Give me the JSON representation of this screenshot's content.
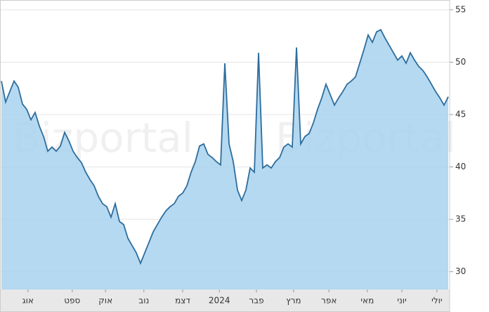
{
  "chart_data": {
    "type": "area",
    "watermark": "Bizportal",
    "values": [
      48.2,
      46.2,
      47.2,
      48.2,
      47.6,
      46.0,
      45.5,
      44.5,
      45.2,
      43.9,
      42.9,
      41.5,
      41.9,
      41.5,
      42.0,
      43.3,
      42.5,
      41.5,
      40.9,
      40.4,
      39.5,
      38.8,
      38.2,
      37.2,
      36.5,
      36.2,
      35.2,
      36.5,
      34.8,
      34.5,
      33.2,
      32.5,
      31.8,
      30.8,
      31.8,
      32.8,
      33.8,
      34.5,
      35.2,
      35.8,
      36.2,
      36.5,
      37.2,
      37.5,
      38.2,
      39.5,
      40.5,
      42.0,
      42.2,
      41.2,
      40.9,
      40.5,
      40.2,
      49.9,
      42.2,
      40.5,
      37.8,
      36.8,
      37.8,
      39.9,
      39.5,
      50.9,
      39.9,
      40.2,
      39.9,
      40.5,
      40.9,
      41.9,
      42.2,
      41.9,
      51.4,
      42.2,
      42.9,
      43.2,
      44.2,
      45.5,
      46.6,
      47.9,
      46.9,
      45.9,
      46.6,
      47.2,
      47.9,
      48.2,
      48.6,
      49.9,
      51.2,
      52.6,
      51.9,
      52.9,
      53.1,
      52.3,
      51.6,
      50.9,
      50.2,
      50.6,
      49.9,
      50.9,
      50.2,
      49.6,
      49.2,
      48.6,
      47.9,
      47.2,
      46.6,
      45.9,
      46.7
    ],
    "color": "#2d6d9c",
    "fill": "#a8d2ee",
    "xlim": [
      0,
      106
    ],
    "xticks": [
      {
        "value": 6.3,
        "label": "אוג"
      },
      {
        "value": 16.8,
        "label": "ספט"
      },
      {
        "value": 24.7,
        "label": "אוק"
      },
      {
        "value": 33.8,
        "label": "נוב"
      },
      {
        "value": 43,
        "label": "דצמ"
      },
      {
        "value": 51.7,
        "label": "2024"
      },
      {
        "value": 60.5,
        "label": "פבר"
      },
      {
        "value": 69.3,
        "label": "מרץ"
      },
      {
        "value": 77.7,
        "label": "אפר"
      },
      {
        "value": 86.8,
        "label": "מאי"
      },
      {
        "value": 95,
        "label": "יוני"
      },
      {
        "value": 103.3,
        "label": "יולי"
      }
    ],
    "ylim": [
      28.3,
      55.4
    ],
    "yticks": [
      30,
      35,
      40,
      45,
      50,
      55
    ],
    "grid": true
  }
}
